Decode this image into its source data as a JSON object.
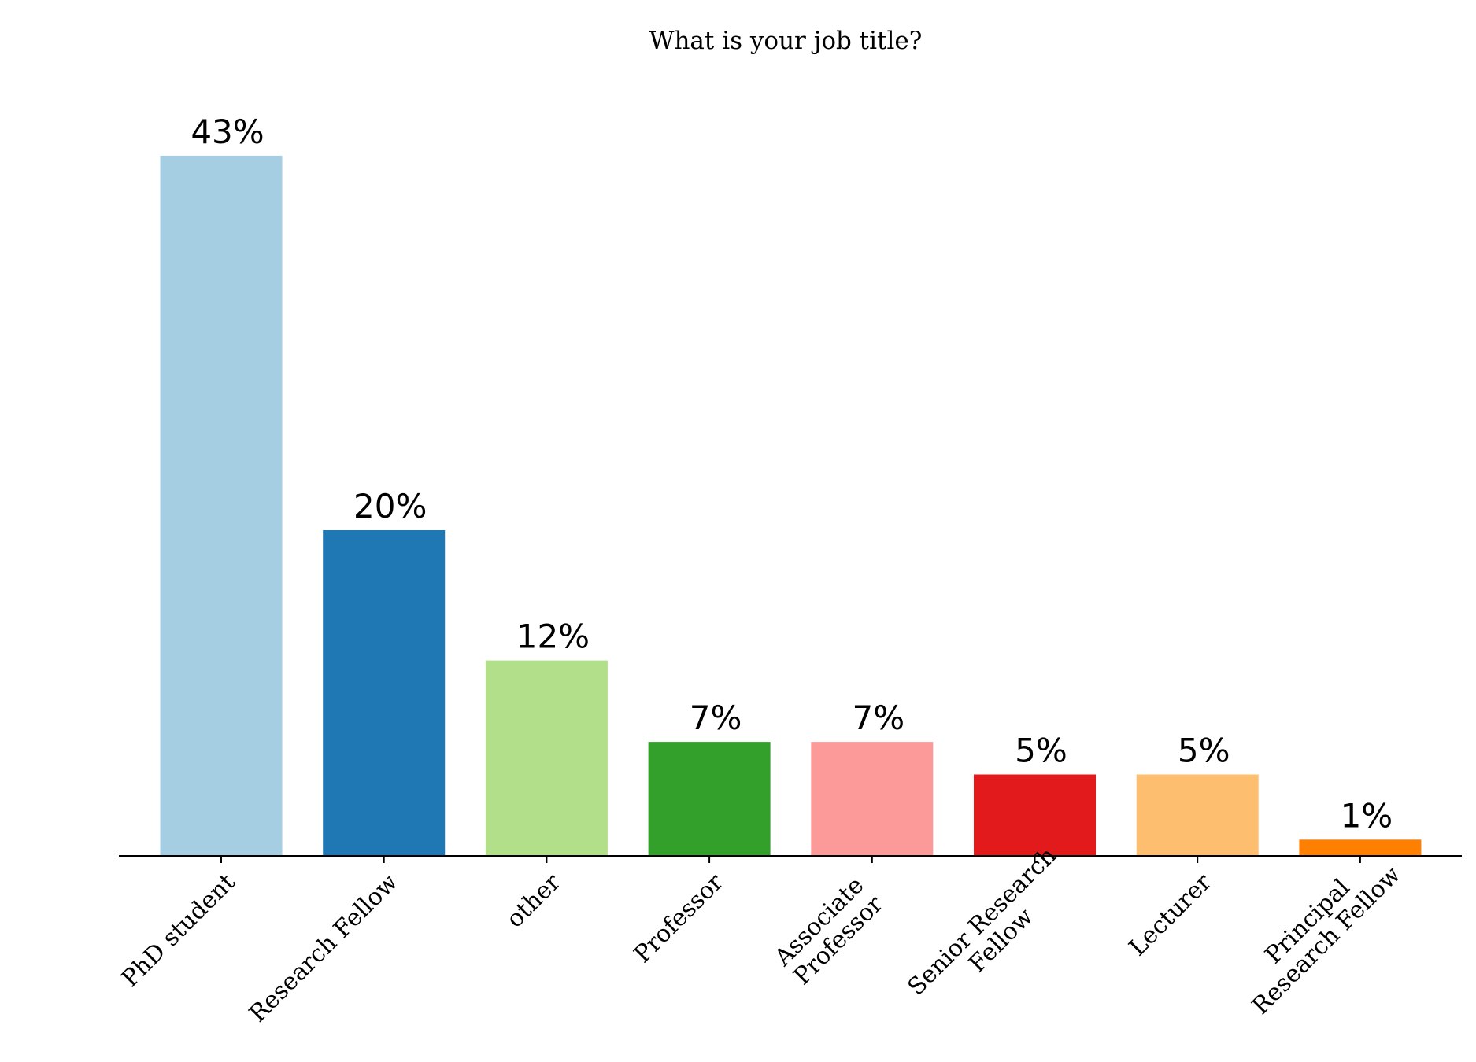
{
  "chart_data": {
    "type": "bar",
    "title": "What is your job title?",
    "xlabel": "",
    "ylabel": "",
    "ylim": [
      0,
      45
    ],
    "grid": false,
    "legend": "none",
    "categories": [
      "PhD student",
      "Research Fellow",
      "other",
      "Professor",
      "Associate Professor",
      "Senior Research Fellow",
      "Lecturer",
      "Principal Research Fellow"
    ],
    "tick_label_lines": [
      [
        "PhD student"
      ],
      [
        "Research Fellow"
      ],
      [
        "other"
      ],
      [
        "Professor"
      ],
      [
        "Associate",
        "Professor"
      ],
      [
        "Senior Research",
        "Fellow"
      ],
      [
        "Lecturer"
      ],
      [
        "Principal",
        "Research Fellow"
      ]
    ],
    "values": [
      43,
      20,
      12,
      7,
      7,
      5,
      5,
      1
    ],
    "value_labels": [
      "43%",
      "20%",
      "12%",
      "7%",
      "7%",
      "5%",
      "5%",
      "1%"
    ],
    "colors": [
      "#a6cee3",
      "#1f78b4",
      "#b2df8a",
      "#33a02c",
      "#fb9a99",
      "#e31a1c",
      "#fdbf6f",
      "#ff7f00"
    ]
  }
}
